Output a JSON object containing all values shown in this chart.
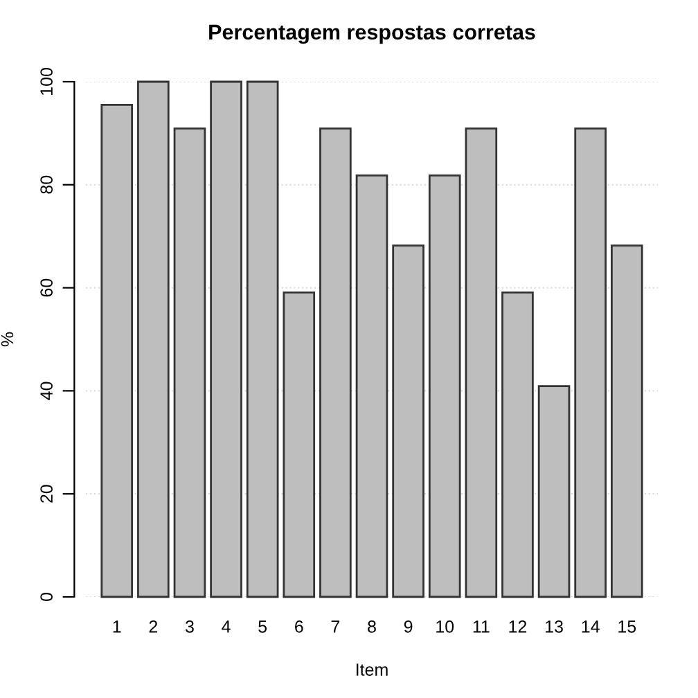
{
  "chart_data": {
    "type": "bar",
    "title": "Percentagem respostas corretas",
    "xlabel": "Item",
    "ylabel": "%",
    "categories": [
      "1",
      "2",
      "3",
      "4",
      "5",
      "6",
      "7",
      "8",
      "9",
      "10",
      "11",
      "12",
      "13",
      "14",
      "15"
    ],
    "values": [
      95.5,
      100,
      90.9,
      100,
      100,
      59.1,
      90.9,
      81.8,
      68.2,
      81.8,
      90.9,
      59.1,
      40.9,
      90.9,
      68.2
    ],
    "color": "#bebebe",
    "ylim": [
      0,
      100
    ],
    "yticks": [
      0,
      20,
      40,
      60,
      80,
      100
    ],
    "grid": "y"
  }
}
